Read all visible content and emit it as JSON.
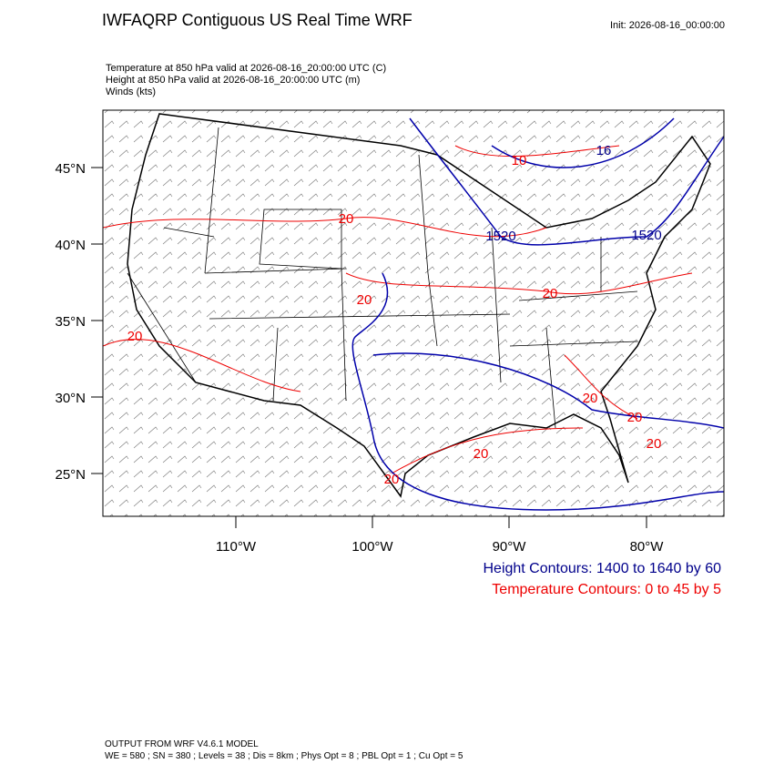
{
  "header": {
    "title": "IWFAQRP Contiguous US Real Time WRF",
    "init": "Init: 2026-08-16_00:00:00",
    "fields": [
      "Temperature at 850 hPa valid at 2026-08-16_20:00:00 UTC   (C)",
      "Height at 850 hPa valid at 2026-08-16_20:00:00 UTC   (m)",
      "Winds   (kts)"
    ]
  },
  "map": {
    "lat_labels": [
      "45°N",
      "40°N",
      "35°N",
      "30°N",
      "25°N"
    ],
    "lon_labels": [
      "110°W",
      "100°W",
      "90°W",
      "80°W"
    ],
    "temperature_labels": [
      "20",
      "10",
      "20",
      "20",
      "20",
      "20",
      "20",
      "20",
      "20",
      "20"
    ],
    "height_labels": [
      "16",
      "1520",
      "1520"
    ]
  },
  "legend": {
    "height": "Height Contours: 1400 to 1640 by 60",
    "temperature": "Temperature Contours: 0 to 45 by 5"
  },
  "footer": [
    "OUTPUT FROM WRF V4.6.1 MODEL",
    "WE = 580 ; SN = 380 ; Levels = 38 ; Dis = 8km ; Phys Opt = 8 ; PBL Opt = 1 ; Cu Opt = 5"
  ]
}
